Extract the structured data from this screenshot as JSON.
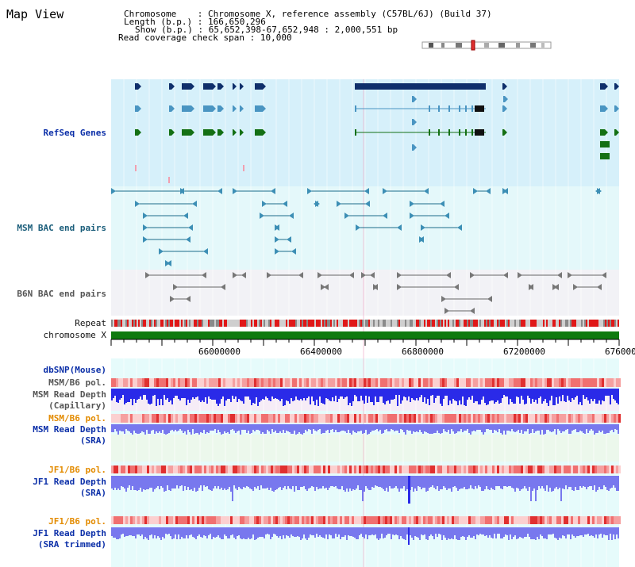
{
  "window": {
    "title": "Map View"
  },
  "header": {
    "rows": [
      {
        "key": "Chromosome",
        "value": "Chromosome X, reference assembly (C57BL/6J) (Build 37)"
      },
      {
        "key": "Length (b.p.)",
        "value": "166,650,296"
      },
      {
        "key": "Show (b.p.)",
        "value": "65,652,398-67,652,948 : 2,000,551 bp"
      },
      {
        "key": "Read coverage check span",
        "value": "10,000"
      }
    ]
  },
  "tracks": {
    "refseq": "RefSeq Genes",
    "msm_bac": "MSM BAC end pairs",
    "b6n_bac": "B6N BAC end pairs",
    "repeat": "Repeat",
    "chromosome": "chromosome X",
    "dbsnp": "dbSNP(Mouse)",
    "msm_b6_pol_1": "MSM/B6 pol.",
    "msm_read_depth_cap": "MSM Read Depth",
    "msm_read_depth_cap_sub": "(Capillary)",
    "msm_b6_pol_2": "MSM/B6 pol.",
    "msm_read_depth_sra": "MSM Read Depth",
    "msm_read_depth_sra_sub": "(SRA)",
    "jf1_b6_pol_1": "JF1/B6 pol.",
    "jf1_read_depth_sra": "JF1 Read Depth",
    "jf1_read_depth_sra_sub": "(SRA)",
    "jf1_b6_pol_2": "JF1/B6 pol.",
    "jf1_read_depth_trim": "JF1 Read Depth",
    "jf1_read_depth_trim_sub": "(SRA trimmed)"
  },
  "axis": {
    "ticks": [
      "66000000",
      "66400000",
      "66800000",
      "67200000",
      "676000"
    ]
  },
  "colors": {
    "refseq_bg": "#d6f0fa",
    "msm_bg": "#e4f8fa",
    "b6n_bg": "#f2f2f6",
    "lower_bg": "#e6fbfb",
    "gene_dark": "#0f2f6b",
    "gene_mid": "#4a95c2",
    "gene_green": "#147014",
    "repeat_red": "#e01818",
    "chrom_green": "#0f7a0f",
    "depth_blue": "#2a2ae8",
    "depth_light": "#7878ee"
  }
}
